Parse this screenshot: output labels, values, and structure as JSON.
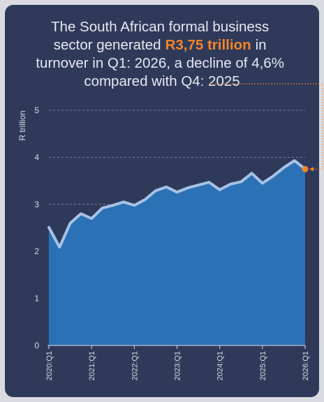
{
  "chart_data": {
    "type": "area",
    "title": {
      "line1": "The South African formal business",
      "line2a": "sector generated",
      "highlight": "R3,75 trillion",
      "line2b": "in",
      "line3": "turnover in Q1: 2026, a decline of 4,6%",
      "line4": "compared with Q4: 2025"
    },
    "y_label": "R trillion",
    "categories": [
      "2020:Q1",
      null,
      null,
      null,
      "2021:Q1",
      null,
      null,
      null,
      "2022:Q1",
      null,
      null,
      null,
      "2023:Q1",
      null,
      null,
      null,
      "2024:Q1",
      null,
      null,
      null,
      "2025:Q1",
      null,
      null,
      null,
      "2026:Q1"
    ],
    "values": [
      2.51,
      2.09,
      2.6,
      2.8,
      2.7,
      2.92,
      2.98,
      3.05,
      2.98,
      3.1,
      3.29,
      3.37,
      3.26,
      3.35,
      3.41,
      3.47,
      3.31,
      3.43,
      3.48,
      3.66,
      3.45,
      3.6,
      3.78,
      3.93,
      3.75
    ],
    "color": "#2a72b5",
    "line_color": "#a8c2e6",
    "highlight_color": "#f58426",
    "ylim": [
      0,
      5
    ],
    "yticks": [
      0,
      1,
      2,
      3,
      4,
      5
    ],
    "grid": true
  }
}
